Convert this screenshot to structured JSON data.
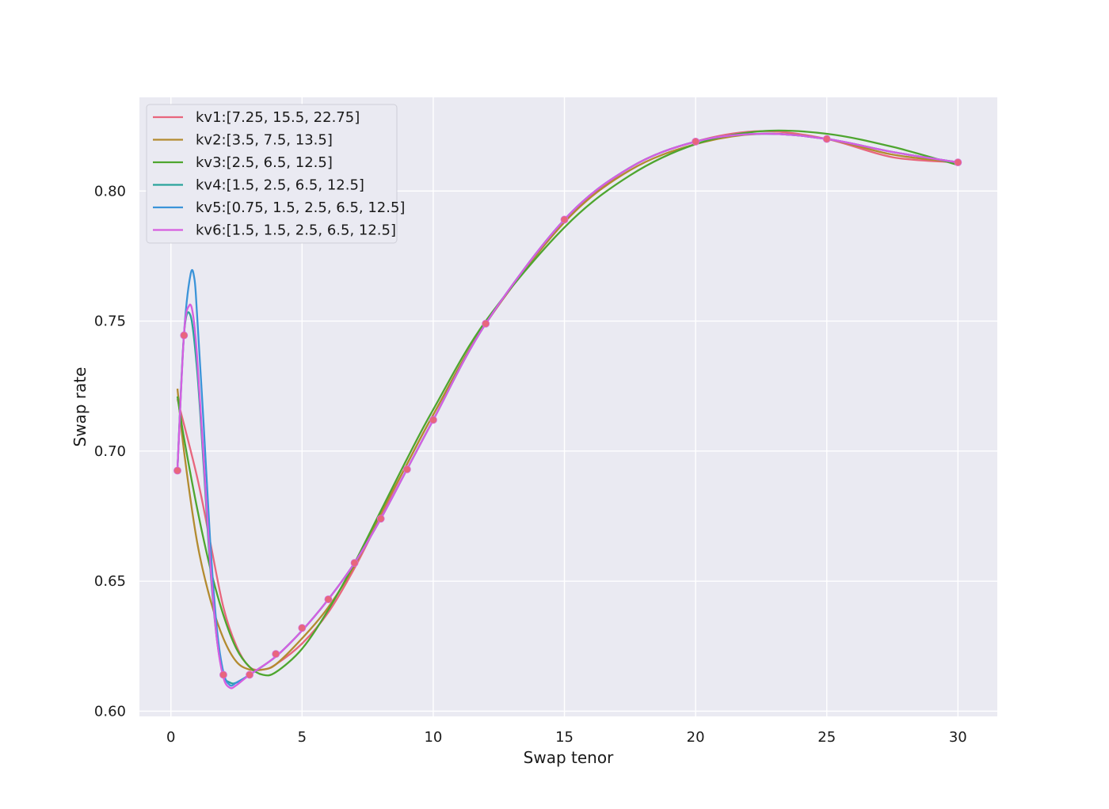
{
  "chart_data": {
    "type": "line",
    "title": "",
    "xlabel": "Swap tenor",
    "ylabel": "Swap rate",
    "xlim": [
      -1.2,
      31.5
    ],
    "ylim": [
      0.598,
      0.836
    ],
    "x_ticks": [
      0,
      5,
      10,
      15,
      20,
      25,
      30
    ],
    "y_ticks": [
      0.6,
      0.65,
      0.7,
      0.75,
      0.8
    ],
    "x_tick_labels": [
      "0",
      "5",
      "10",
      "15",
      "20",
      "25",
      "30"
    ],
    "y_tick_labels": [
      "0.60",
      "0.65",
      "0.70",
      "0.75",
      "0.80"
    ],
    "grid": true,
    "legend_position": "top-left",
    "background": "#eaeaf2",
    "series": [
      {
        "name": "kv1:[7.25, 15.5, 22.75]",
        "color": "#e8667d",
        "x": [
          0.25,
          1,
          1.5,
          2,
          2.5,
          3,
          3.5,
          4,
          5,
          6,
          7,
          8,
          9,
          10,
          12,
          15,
          17.5,
          20,
          22.5,
          25,
          27.5,
          30
        ],
        "y": [
          0.72,
          0.69,
          0.665,
          0.64,
          0.625,
          0.617,
          0.616,
          0.618,
          0.626,
          0.638,
          0.655,
          0.675,
          0.695,
          0.714,
          0.749,
          0.788,
          0.809,
          0.819,
          0.823,
          0.82,
          0.813,
          0.811
        ]
      },
      {
        "name": "kv2:[3.5, 7.5, 13.5]",
        "color": "#b38b30",
        "x": [
          0.25,
          0.5,
          1,
          1.5,
          2,
          2.5,
          3,
          3.5,
          4,
          5,
          6,
          7,
          8,
          9,
          10,
          12,
          15,
          17.5,
          20,
          22.5,
          25,
          27.5,
          30
        ],
        "y": [
          0.724,
          0.7,
          0.665,
          0.643,
          0.628,
          0.619,
          0.616,
          0.616,
          0.618,
          0.628,
          0.64,
          0.656,
          0.676,
          0.695,
          0.714,
          0.749,
          0.788,
          0.808,
          0.818,
          0.822,
          0.82,
          0.814,
          0.811
        ]
      },
      {
        "name": "kv3:[2.5, 6.5, 12.5]",
        "color": "#4ea62f",
        "x": [
          0.25,
          0.5,
          1,
          1.5,
          2,
          2.5,
          3,
          3.5,
          4,
          5,
          6,
          7,
          8,
          9,
          10,
          12,
          15,
          17.5,
          20,
          22.5,
          25,
          27.5,
          30
        ],
        "y": [
          0.721,
          0.705,
          0.678,
          0.655,
          0.637,
          0.624,
          0.617,
          0.614,
          0.615,
          0.624,
          0.639,
          0.657,
          0.677,
          0.697,
          0.716,
          0.75,
          0.786,
          0.806,
          0.818,
          0.823,
          0.822,
          0.817,
          0.81
        ]
      },
      {
        "name": "kv4:[1.5, 2.5, 6.5, 12.5]",
        "color": "#2aa39b",
        "x": [
          0.25,
          0.5,
          0.75,
          1,
          1.25,
          1.5,
          1.75,
          2,
          2.25,
          2.5,
          3,
          4,
          5,
          6,
          7,
          8,
          9,
          10,
          12,
          15,
          17.5,
          20,
          22.5,
          25,
          27.5,
          30
        ],
        "y": [
          0.693,
          0.745,
          0.752,
          0.731,
          0.694,
          0.655,
          0.628,
          0.614,
          0.611,
          0.611,
          0.614,
          0.621,
          0.631,
          0.643,
          0.657,
          0.674,
          0.693,
          0.712,
          0.749,
          0.789,
          0.809,
          0.819,
          0.822,
          0.82,
          0.815,
          0.811
        ]
      },
      {
        "name": "kv5:[0.75, 1.5, 2.5, 6.5, 12.5]",
        "color": "#3b94d9",
        "x": [
          0.25,
          0.5,
          0.75,
          0.9,
          1,
          1.25,
          1.5,
          1.75,
          2,
          2.25,
          2.5,
          3,
          4,
          5,
          6,
          7,
          8,
          9,
          10,
          12,
          15,
          17.5,
          20,
          22.5,
          25,
          27.5,
          30
        ],
        "y": [
          0.693,
          0.745,
          0.768,
          0.766,
          0.752,
          0.71,
          0.665,
          0.632,
          0.615,
          0.61,
          0.611,
          0.614,
          0.621,
          0.631,
          0.643,
          0.657,
          0.674,
          0.693,
          0.712,
          0.749,
          0.789,
          0.809,
          0.819,
          0.822,
          0.82,
          0.815,
          0.811
        ]
      },
      {
        "name": "kv6:[1.5, 1.5, 2.5, 6.5, 12.5]",
        "color": "#d65ee0",
        "x": [
          0.25,
          0.5,
          0.7,
          0.85,
          1,
          1.25,
          1.5,
          1.75,
          2,
          2.25,
          2.5,
          3,
          4,
          5,
          6,
          7,
          8,
          9,
          10,
          12,
          15,
          17.5,
          20,
          22.5,
          25,
          27.5,
          30
        ],
        "y": [
          0.693,
          0.745,
          0.756,
          0.752,
          0.736,
          0.697,
          0.657,
          0.628,
          0.613,
          0.609,
          0.61,
          0.614,
          0.621,
          0.631,
          0.643,
          0.657,
          0.674,
          0.693,
          0.712,
          0.749,
          0.789,
          0.809,
          0.819,
          0.822,
          0.82,
          0.815,
          0.811
        ]
      }
    ],
    "markers": {
      "color": "#e8667d",
      "x": [
        0.25,
        0.5,
        2,
        3,
        4,
        5,
        6,
        7,
        8,
        9,
        10,
        12,
        15,
        20,
        25,
        30
      ],
      "y": [
        0.6925,
        0.7445,
        0.614,
        0.614,
        0.622,
        0.632,
        0.643,
        0.657,
        0.674,
        0.693,
        0.712,
        0.749,
        0.789,
        0.819,
        0.82,
        0.811
      ]
    }
  }
}
